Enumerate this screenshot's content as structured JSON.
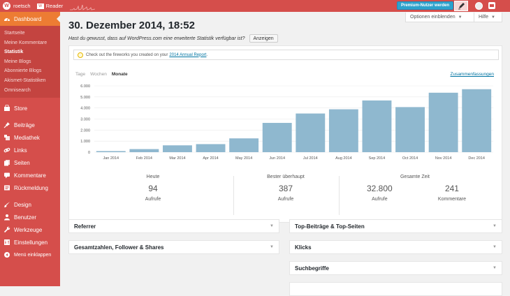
{
  "topbar": {
    "site_name": "roetsch",
    "reader_label": "Reader",
    "premium_label": "Premium-Nutzer werden"
  },
  "screen_options": {
    "options_label": "Optionen einblenden",
    "help_label": "Hilfe"
  },
  "sidebar": {
    "current": {
      "label": "Dashboard",
      "icon": "dashboard-icon"
    },
    "submenu": [
      "Startseite",
      "Meine Kommentare",
      "Statistik",
      "Meine Blogs",
      "Abonnierte Blogs",
      "Akismet-Statistiken",
      "Omnisearch"
    ],
    "active_submenu": "Statistik",
    "group1": [
      {
        "label": "Store",
        "icon": "store-icon"
      }
    ],
    "group2": [
      {
        "label": "Beiträge",
        "icon": "pin-icon"
      },
      {
        "label": "Mediathek",
        "icon": "media-icon"
      },
      {
        "label": "Links",
        "icon": "link-icon"
      },
      {
        "label": "Seiten",
        "icon": "pages-icon"
      },
      {
        "label": "Kommentare",
        "icon": "comment-icon"
      },
      {
        "label": "Rückmeldung",
        "icon": "feedback-icon"
      }
    ],
    "group3": [
      {
        "label": "Design",
        "icon": "brush-icon"
      },
      {
        "label": "Benutzer",
        "icon": "user-icon"
      },
      {
        "label": "Werkzeuge",
        "icon": "wrench-icon"
      },
      {
        "label": "Einstellungen",
        "icon": "settings-icon"
      },
      {
        "label": "Menü einklappen",
        "icon": "collapse-icon"
      }
    ]
  },
  "page": {
    "title": "30. Dezember 2014, 18:52",
    "notice": "Hast du gewusst, dass auf WordPress.com eine erweiterte Statistik verfügbar ist?",
    "notice_button": "Anzeigen"
  },
  "stats": {
    "fireworks_text": "Check out the fireworks you created on your",
    "fireworks_link": "2014 Annual Report",
    "fireworks_end": ".",
    "tabs": [
      "Tage",
      "Wochen",
      "Monate"
    ],
    "active_tab": "Monate",
    "summaries_link": "Zusammenfassungen",
    "today": {
      "label": "Heute",
      "value": "94",
      "unit": "Aufrufe"
    },
    "best": {
      "label": "Bester überhaupt",
      "value": "387",
      "unit": "Aufrufe"
    },
    "total": {
      "label": "Gesamte Zeit",
      "views": "32.800",
      "views_unit": "Aufrufe",
      "comments": "241",
      "comments_unit": "Kommentare"
    }
  },
  "chart_data": {
    "type": "bar",
    "categories": [
      "Jan 2014",
      "Feb 2014",
      "Mar 2014",
      "Apr 2014",
      "May 2014",
      "Jun 2014",
      "Jul 2014",
      "Aug 2014",
      "Sep 2014",
      "Oct 2014",
      "Nov 2014",
      "Dec 2014"
    ],
    "values": [
      100,
      280,
      620,
      730,
      1250,
      2650,
      3500,
      3880,
      4680,
      4080,
      5380,
      5700
    ],
    "yticks": [
      "0",
      "1.000",
      "2.000",
      "3.000",
      "4.000",
      "5.000",
      "6.000"
    ],
    "ylim": [
      0,
      6000
    ],
    "color": "#8fb8cf",
    "grid": true
  },
  "postboxes": {
    "referrer": "Referrer",
    "top_posts": "Top-Beiträge & Top-Seiten",
    "totals": "Gesamtzahlen, Follower & Shares",
    "clicks": "Klicks",
    "search_terms": "Suchbegriffe"
  }
}
